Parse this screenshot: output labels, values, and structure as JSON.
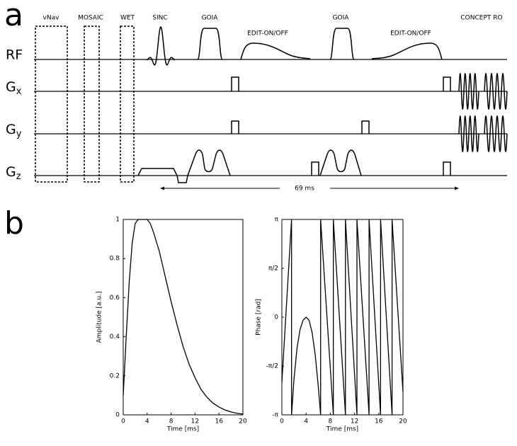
{
  "panel_labels": [
    "a",
    "b"
  ],
  "diagram": {
    "row_labels": [
      {
        "main": "RF"
      },
      {
        "main": "G",
        "sub": "x"
      },
      {
        "main": "G",
        "sub": "y"
      },
      {
        "main": "G",
        "sub": "z"
      }
    ],
    "block_labels": [
      "vNav",
      "MOSAIC",
      "WET",
      "SINC",
      "GOIA",
      "EDIT-ON/OFF",
      "GOIA",
      "EDIT-ON/OFF",
      "CONCEPT RO"
    ],
    "timing_label": "69 ms"
  },
  "chart_data": [
    {
      "type": "line",
      "xlabel": "Time [ms]",
      "ylabel": "Amplitude [a.u.]",
      "color": "#000000",
      "xlim": [
        0,
        20
      ],
      "xticks": [
        0,
        4,
        8,
        12,
        16,
        20
      ],
      "ylim": [
        0,
        1
      ],
      "yticks": [
        0,
        0.2,
        0.4,
        0.6,
        0.8,
        1
      ],
      "x": [
        0,
        0.5,
        1,
        1.5,
        2,
        2.5,
        3,
        3.5,
        4,
        4.5,
        5,
        6,
        7,
        8,
        9,
        10,
        11,
        12,
        13,
        14,
        15,
        16,
        17,
        18,
        19,
        20
      ],
      "values": [
        0.1,
        0.4,
        0.68,
        0.88,
        0.98,
        1,
        1,
        1,
        1,
        0.98,
        0.94,
        0.84,
        0.71,
        0.58,
        0.46,
        0.35,
        0.26,
        0.19,
        0.13,
        0.09,
        0.06,
        0.04,
        0.025,
        0.015,
        0.008,
        0.004
      ]
    },
    {
      "type": "line",
      "xlabel": "Time [ms]",
      "ylabel": "Phase [rad]",
      "color": "#000000",
      "xlim": [
        0,
        20
      ],
      "xticks": [
        0,
        4,
        8,
        12,
        16,
        20
      ],
      "ylim": [
        -3.1416,
        3.1416
      ],
      "yticks": [
        {
          "value": -3.1416,
          "label": "-π"
        },
        {
          "value": -1.5708,
          "label": "-π/2"
        },
        0,
        {
          "value": 1.5708,
          "label": "π/2"
        },
        {
          "value": 3.1416,
          "label": "π"
        }
      ],
      "x": [
        0,
        1.6,
        1.6,
        2,
        2.5,
        3,
        3.5,
        4,
        4.5,
        5,
        5.5,
        6,
        6.4,
        6.4,
        8.5,
        8.5,
        10.5,
        10.5,
        12.4,
        12.4,
        14.4,
        14.4,
        16.3,
        16.3,
        18.2,
        18.2,
        20
      ],
      "values": [
        -2.1,
        3.1416,
        -3.1416,
        -2.0,
        -1.0,
        -0.4,
        -0.1,
        0,
        -0.1,
        -0.5,
        -1.2,
        -2.2,
        -3.1416,
        3.1416,
        -3.1416,
        3.1416,
        -3.1416,
        3.1416,
        -3.1416,
        3.1416,
        -3.1416,
        3.1416,
        -3.1416,
        3.1416,
        -3.1416,
        3.1416,
        -2.4
      ]
    }
  ]
}
